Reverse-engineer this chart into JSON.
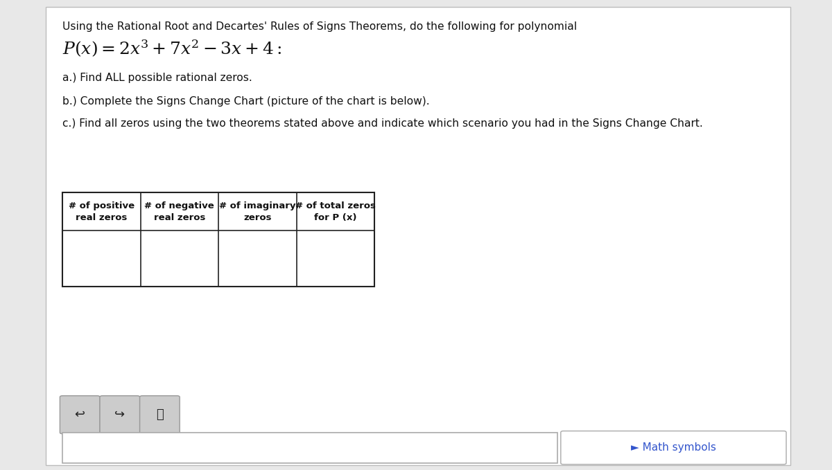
{
  "bg_color": "#e8e8e8",
  "card_color": "#ffffff",
  "card_border_color": "#bbbbbb",
  "title_line": "Using the Rational Root and Decartes' Rules of Signs Theorems, do the following for polynomial",
  "items": [
    "a.) Find ALL possible rational zeros.",
    "b.) Complete the Signs Change Chart (picture of the chart is below).",
    "c.) Find all zeros using the two theorems stated above and indicate which scenario you had in the Signs Change Chart."
  ],
  "table_headers": [
    "# of positive\nreal zeros",
    "# of negative\nreal zeros",
    "# of imaginary\nzeros",
    "# of total zeros\nfor P (x)"
  ],
  "math_symbols_text": "► Math symbols",
  "math_symbols_color": "#3355cc",
  "text_color": "#111111"
}
